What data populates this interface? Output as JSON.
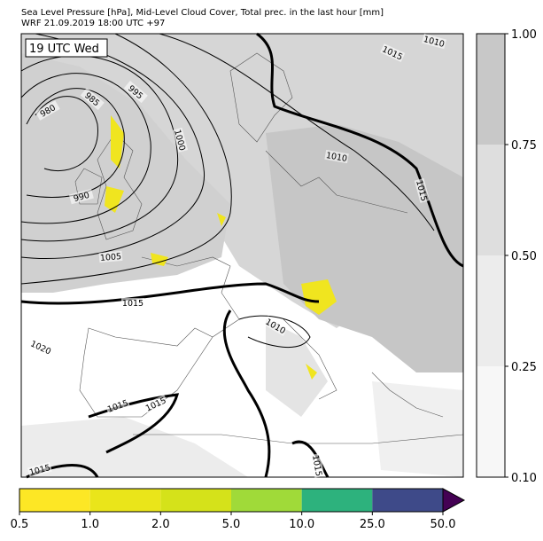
{
  "header": {
    "title_line1": "Sea Level Pressure [hPa], Mid-Level Cloud Cover, Total prec. in the last hour [mm]",
    "title_line2": "WRF 21.09.2019 18:00 UTC +97"
  },
  "map": {
    "time_label": "19 UTC Wed",
    "isobar_labels": [
      "980",
      "985",
      "995",
      "1000",
      "990",
      "1005",
      "1015",
      "1020",
      "1010",
      "1015",
      "1015",
      "1015",
      "1015",
      "1010",
      "1015",
      "1010",
      "1015"
    ]
  },
  "cloud_colorbar": {
    "ticks": [
      "0.10",
      "0.25",
      "0.50",
      "0.75",
      "1.00"
    ],
    "colors": [
      "#f7f7f7",
      "#ececec",
      "#dedede",
      "#c8c8c8"
    ]
  },
  "precip_colorbar": {
    "ticks": [
      "0.5",
      "1.0",
      "2.0",
      "5.0",
      "10.0",
      "25.0",
      "50.0"
    ],
    "colors": [
      "#fde725",
      "#eae51a",
      "#d5e21a",
      "#a0da39",
      "#2db27d",
      "#3e4a89"
    ],
    "extend_color": "#440154"
  }
}
